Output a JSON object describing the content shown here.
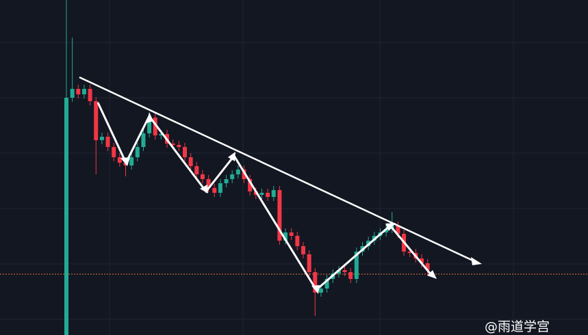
{
  "chart_data": {
    "type": "candlestick",
    "up_color": "#22ab94",
    "down_color": "#f23645",
    "ylim": [
      0,
      490
    ],
    "price_line": 89,
    "price_line_color": "#e07a3f",
    "open": [
      0,
      347,
      360,
      352,
      360,
      342,
      285,
      290,
      275,
      260,
      252,
      248,
      260,
      275,
      295,
      318,
      292,
      294,
      280,
      278,
      275,
      260,
      247,
      235,
      228,
      215,
      208,
      222,
      228,
      235,
      242,
      228,
      210,
      205,
      208,
      202,
      212,
      138,
      150,
      145,
      130,
      118,
      92,
      62,
      68,
      82,
      90,
      95,
      92,
      82,
      122,
      130,
      138,
      145,
      150,
      155,
      160,
      148,
      122,
      120,
      112,
      105
    ],
    "high": [
      490,
      435,
      366,
      366,
      366,
      348,
      296,
      296,
      281,
      266,
      258,
      266,
      281,
      301,
      324,
      324,
      300,
      300,
      286,
      284,
      281,
      266,
      253,
      241,
      234,
      221,
      228,
      234,
      241,
      248,
      248,
      234,
      216,
      214,
      214,
      218,
      218,
      156,
      156,
      151,
      136,
      124,
      98,
      74,
      88,
      96,
      101,
      101,
      98,
      128,
      136,
      144,
      151,
      156,
      161,
      180,
      166,
      154,
      128,
      126,
      118,
      111
    ],
    "low": [
      0,
      341,
      346,
      346,
      336,
      235,
      279,
      269,
      254,
      246,
      232,
      242,
      254,
      269,
      289,
      286,
      286,
      274,
      272,
      269,
      254,
      241,
      229,
      222,
      209,
      202,
      202,
      216,
      222,
      229,
      222,
      204,
      199,
      199,
      196,
      196,
      132,
      132,
      139,
      124,
      112,
      86,
      28,
      56,
      62,
      76,
      84,
      86,
      76,
      76,
      116,
      124,
      132,
      139,
      144,
      149,
      142,
      116,
      114,
      106,
      99,
      89
    ],
    "close": [
      347,
      360,
      352,
      360,
      342,
      285,
      290,
      275,
      260,
      252,
      248,
      260,
      275,
      295,
      318,
      292,
      294,
      280,
      278,
      275,
      260,
      247,
      235,
      228,
      215,
      208,
      222,
      228,
      235,
      242,
      228,
      210,
      205,
      208,
      202,
      212,
      138,
      150,
      145,
      130,
      118,
      92,
      62,
      68,
      82,
      90,
      95,
      92,
      82,
      122,
      130,
      138,
      145,
      150,
      155,
      160,
      148,
      122,
      120,
      112,
      105,
      95
    ]
  },
  "watermark": "@雨道学宫"
}
